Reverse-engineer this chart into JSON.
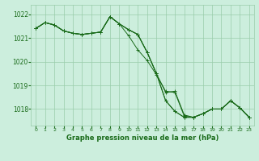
{
  "title": "Graphe pression niveau de la mer (hPa)",
  "background_color": "#cceedd",
  "grid_color": "#99ccaa",
  "line_color": "#1a6b1a",
  "xlim": [
    -0.5,
    23.5
  ],
  "ylim": [
    1017.3,
    1022.4
  ],
  "yticks": [
    1018,
    1019,
    1020,
    1021,
    1022
  ],
  "xticks": [
    0,
    1,
    2,
    3,
    4,
    5,
    6,
    7,
    8,
    9,
    10,
    11,
    12,
    13,
    14,
    15,
    16,
    17,
    18,
    19,
    20,
    21,
    22,
    23
  ],
  "series": [
    [
      1021.4,
      1021.65,
      1021.55,
      1021.3,
      1021.2,
      1021.15,
      1021.2,
      1021.25,
      1021.9,
      1021.6,
      1021.1,
      1020.5,
      1020.05,
      1019.45,
      1018.75,
      1018.7,
      1017.7,
      1017.65,
      1017.8,
      1018.0,
      1018.0,
      1018.35,
      1018.05,
      1017.65
    ],
    [
      1021.4,
      1021.65,
      1021.55,
      1021.3,
      1021.2,
      1021.15,
      1021.2,
      1021.25,
      1021.9,
      1021.6,
      1021.35,
      1021.15,
      1020.4,
      1019.5,
      1018.7,
      1018.75,
      1017.75,
      1017.65,
      1017.8,
      1018.0,
      1018.0,
      1018.35,
      1018.05,
      1017.65
    ],
    [
      1021.4,
      1021.65,
      1021.55,
      1021.3,
      1021.2,
      1021.15,
      1021.2,
      1021.25,
      1021.9,
      1021.6,
      1021.35,
      1021.15,
      1020.4,
      1019.5,
      1018.35,
      1017.9,
      1017.65,
      1017.65,
      1017.8,
      1018.0,
      1018.0,
      1018.35,
      1018.05,
      1017.65
    ],
    [
      1021.4,
      1021.65,
      1021.55,
      1021.3,
      1021.2,
      1021.15,
      1021.2,
      1021.25,
      1021.9,
      1021.6,
      1021.35,
      1021.15,
      1020.4,
      1019.5,
      1018.35,
      1017.9,
      1017.65,
      1017.65,
      1017.8,
      1018.0,
      1018.0,
      1018.35,
      1018.05,
      1017.65
    ]
  ]
}
